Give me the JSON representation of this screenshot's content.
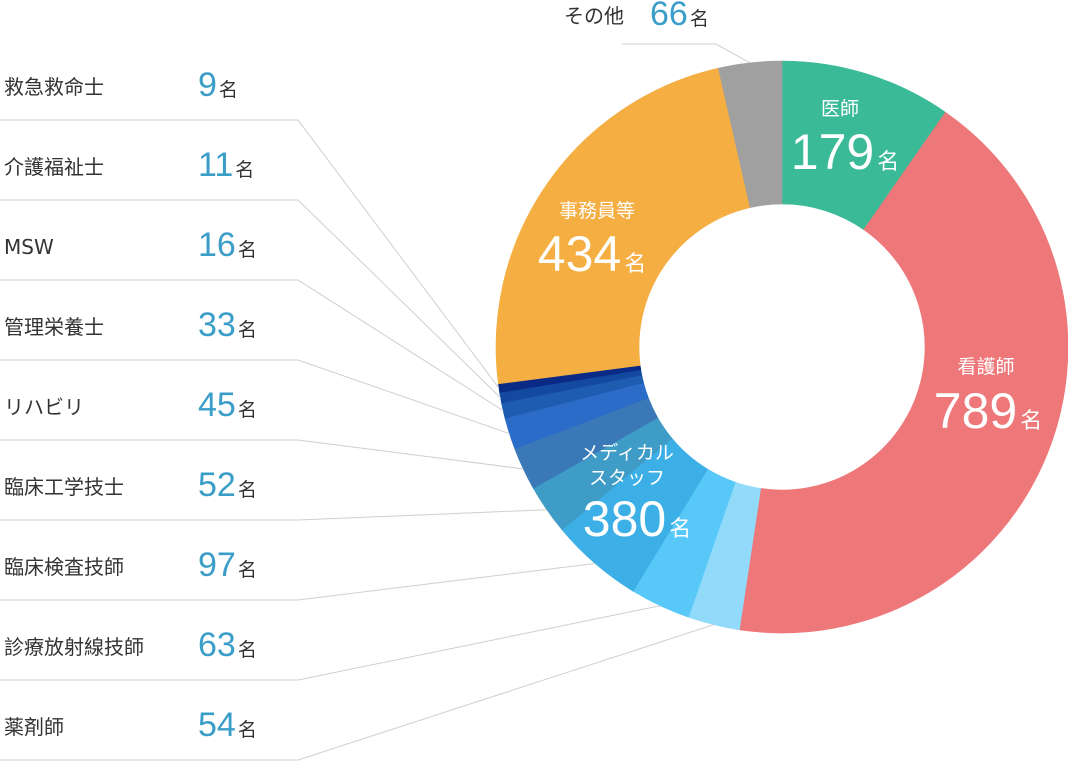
{
  "chart_data": {
    "type": "pie",
    "unit": "名",
    "slices": [
      {
        "label": "医師",
        "value": 179,
        "color": "#3bba98"
      },
      {
        "label": "看護師",
        "value": 789,
        "color": "#ee7779"
      },
      {
        "label": "薬剤師",
        "value": 54,
        "color": "#92dafa",
        "group": "メディカルスタッフ"
      },
      {
        "label": "診療放射線技師",
        "value": 63,
        "color": "#58c8f8",
        "group": "メディカルスタッフ"
      },
      {
        "label": "臨床検査技師",
        "value": 97,
        "color": "#3cb0e6",
        "group": "メディカルスタッフ"
      },
      {
        "label": "臨床工学技士",
        "value": 52,
        "color": "#3e9cc6",
        "group": "メディカルスタッフ"
      },
      {
        "label": "リハビリ",
        "value": 45,
        "color": "#3a78b8",
        "group": "メディカルスタッフ"
      },
      {
        "label": "管理栄養士",
        "value": 33,
        "color": "#2a6cc8",
        "group": "メディカルスタッフ"
      },
      {
        "label": "MSW",
        "value": 16,
        "color": "#1e5cb0",
        "group": "メディカルスタッフ"
      },
      {
        "label": "介護福祉士",
        "value": 11,
        "color": "#134aa0",
        "group": "メディカルスタッフ"
      },
      {
        "label": "救急救命士",
        "value": 9,
        "color": "#0a2a86",
        "group": "メディカルスタッフ"
      },
      {
        "label": "事務員等",
        "value": 434,
        "color": "#f4ae42"
      },
      {
        "label": "その他",
        "value": 66,
        "color": "#a0a0a0"
      }
    ],
    "group_total": {
      "label": "メディカルスタッフ",
      "value": 380
    },
    "left_legend_order": [
      "救急救命士",
      "介護福祉士",
      "MSW",
      "管理栄養士",
      "リハビリ",
      "臨床工学技士",
      "臨床検査技師",
      "診療放射線技師",
      "薬剤師"
    ]
  }
}
